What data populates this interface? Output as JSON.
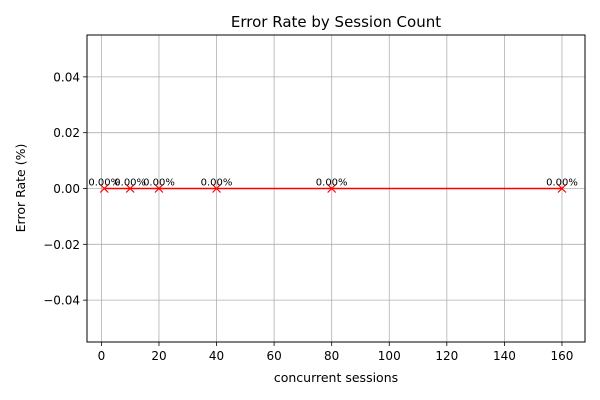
{
  "chart_data": {
    "type": "line",
    "title": "Error Rate by Session Count",
    "xlabel": "concurrent sessions",
    "ylabel": "Error Rate (%)",
    "xlim": [
      -5,
      168
    ],
    "ylim": [
      -0.055,
      0.055
    ],
    "xticks": [
      0,
      20,
      40,
      60,
      80,
      100,
      120,
      140,
      160
    ],
    "xtick_labels": [
      "0",
      "20",
      "40",
      "60",
      "80",
      "100",
      "120",
      "140",
      "160"
    ],
    "yticks": [
      -0.04,
      -0.02,
      0.0,
      0.02,
      0.04
    ],
    "ytick_labels": [
      "−0.04",
      "−0.02",
      "0.00",
      "0.02",
      "0.04"
    ],
    "grid": true,
    "series": [
      {
        "x": [
          1,
          10,
          20,
          40,
          80,
          160
        ],
        "y": [
          0,
          0,
          0,
          0,
          0,
          0
        ],
        "labels": [
          "0.00%",
          "0.00%",
          "0.00%",
          "0.00%",
          "0.00%",
          "0.00%"
        ],
        "color": "#ff0000",
        "marker": "x"
      }
    ]
  }
}
